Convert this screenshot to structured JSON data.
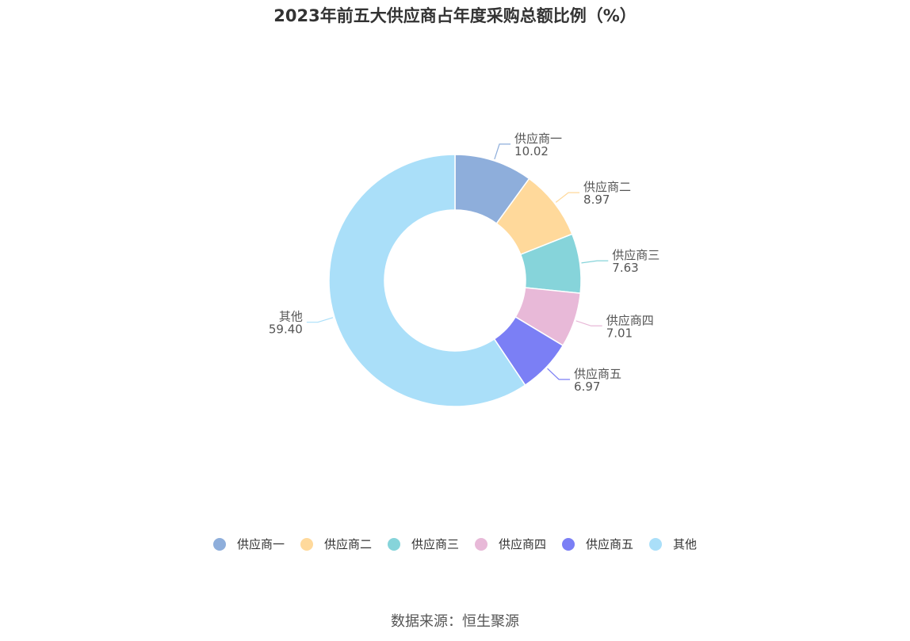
{
  "title": "2023年前五大供应商占年度采购总额比例（%）",
  "source": "数据来源：恒生聚源",
  "chart_data": {
    "type": "pie",
    "donut": true,
    "title": "2023年前五大供应商占年度采购总额比例（%）",
    "legend_position": "bottom",
    "slices": [
      {
        "label": "供应商一",
        "value": 10.02,
        "value_text": "10.02",
        "color": "#8eaedb"
      },
      {
        "label": "供应商二",
        "value": 8.97,
        "value_text": "8.97",
        "color": "#ffd99b"
      },
      {
        "label": "供应商三",
        "value": 7.63,
        "value_text": "7.63",
        "color": "#86d4da"
      },
      {
        "label": "供应商四",
        "value": 7.01,
        "value_text": "7.01",
        "color": "#e8b9d8"
      },
      {
        "label": "供应商五",
        "value": 6.97,
        "value_text": "6.97",
        "color": "#7b7ff5"
      },
      {
        "label": "其他",
        "value": 59.4,
        "value_text": "59.40",
        "color": "#aadff9"
      }
    ]
  }
}
